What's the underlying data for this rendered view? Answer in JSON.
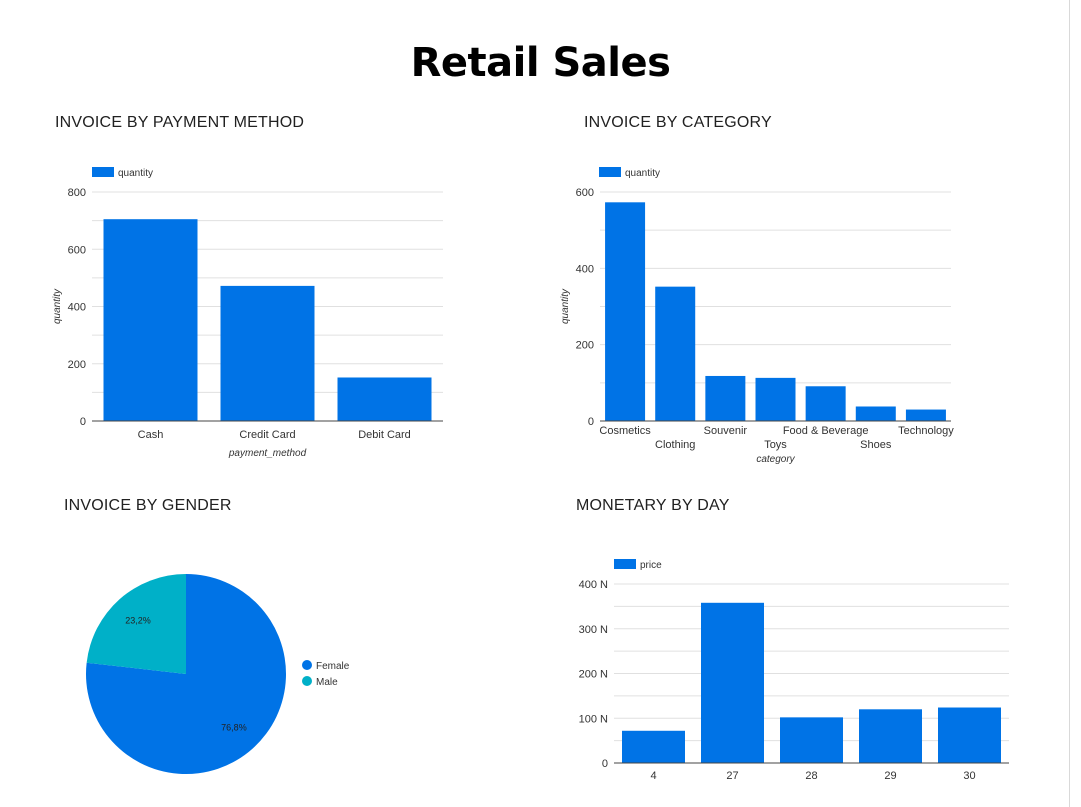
{
  "dashboard": {
    "title": "Retail Sales"
  },
  "colors": {
    "primary": "#0073e6",
    "secondary": "#00b0c8",
    "grid": "#e0e0e0",
    "axis": "#444444"
  },
  "chart_data": [
    {
      "id": "payment",
      "type": "bar",
      "title": "INVOICE BY PAYMENT METHOD",
      "categories": [
        "Cash",
        "Credit Card",
        "Debit Card"
      ],
      "series": [
        {
          "name": "quantity",
          "values": [
            705,
            472,
            152
          ]
        }
      ],
      "xlabel": "payment_method",
      "ylabel": "quantity",
      "ylim": [
        0,
        800
      ],
      "yticks": [
        "0",
        "200",
        "400",
        "600",
        "800"
      ],
      "grid": true,
      "legend": "top-left"
    },
    {
      "id": "category",
      "type": "bar",
      "title": "INVOICE BY CATEGORY",
      "categories": [
        "Cosmetics",
        "Clothing",
        "Souvenir",
        "Toys",
        "Food & Beverage",
        "Shoes",
        "Technology"
      ],
      "series": [
        {
          "name": "quantity",
          "values": [
            573,
            352,
            118,
            113,
            91,
            38,
            30
          ]
        }
      ],
      "xlabel": "category",
      "ylabel": "quantity",
      "ylim": [
        0,
        600
      ],
      "yticks": [
        "0",
        "200",
        "400",
        "600"
      ],
      "grid": true,
      "legend": "top-left"
    },
    {
      "id": "gender",
      "type": "pie",
      "title": "INVOICE BY GENDER",
      "labels": [
        "Female",
        "Male"
      ],
      "values": [
        76.8,
        23.2
      ],
      "value_labels": [
        "76,8%",
        "23,2%"
      ],
      "legend": "right"
    },
    {
      "id": "monetary",
      "type": "bar",
      "title": "MONETARY BY DAY",
      "categories": [
        "4",
        "27",
        "28",
        "29",
        "30"
      ],
      "series": [
        {
          "name": "price",
          "values": [
            72,
            358,
            102,
            120,
            124
          ]
        }
      ],
      "xlabel": "",
      "ylabel": "",
      "ylim": [
        0,
        400
      ],
      "yticks": [
        "0",
        "100 N",
        "200 N",
        "300 N",
        "400 N"
      ],
      "grid": true,
      "legend": "top-left"
    }
  ]
}
